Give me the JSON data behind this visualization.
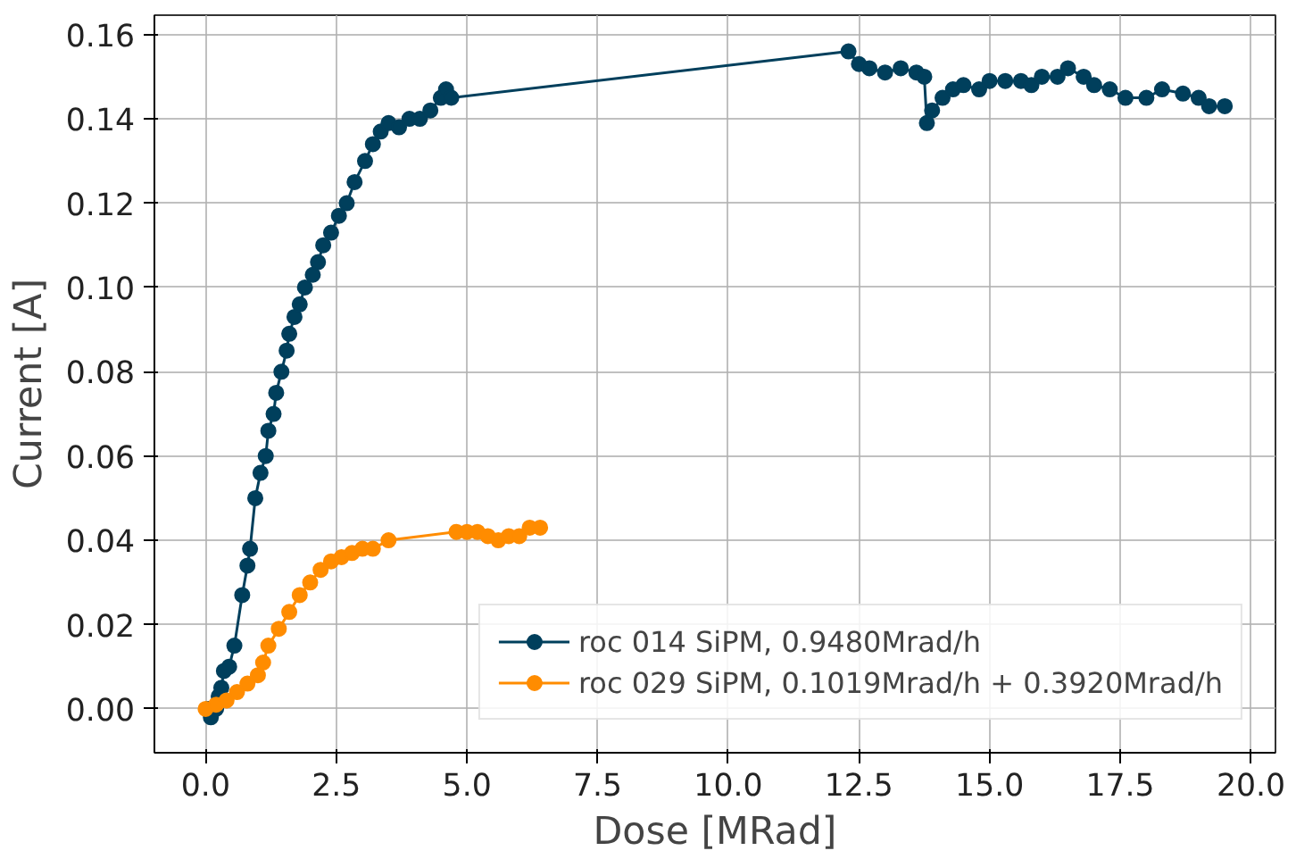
{
  "chart_data": {
    "type": "line",
    "xlabel": "Dose [MRad]",
    "ylabel": "Current [A]",
    "xlim": [
      -0.98,
      20.47
    ],
    "ylim": [
      -0.0104,
      0.1646
    ],
    "xticks": [
      {
        "value": 0,
        "label": "0.0"
      },
      2.5,
      {
        "value": 5,
        "label": "5.0"
      },
      7.5,
      {
        "value": 10,
        "label": "10.0"
      },
      12.5,
      {
        "value": 15,
        "label": "15.0"
      },
      17.5,
      {
        "value": 20,
        "label": "20.0"
      }
    ],
    "yticks": [
      {
        "value": 0,
        "label": "0.00"
      },
      {
        "value": 0.02,
        "label": "0.02"
      },
      {
        "value": 0.04,
        "label": "0.04"
      },
      {
        "value": 0.06,
        "label": "0.06"
      },
      {
        "value": 0.08,
        "label": "0.08"
      },
      {
        "value": 0.1,
        "label": "0.10"
      },
      {
        "value": 0.12,
        "label": "0.12"
      },
      {
        "value": 0.14,
        "label": "0.14"
      },
      {
        "value": 0.16,
        "label": "0.16"
      }
    ],
    "grid": true,
    "legend": "bottom right",
    "marker": "circle",
    "line_style": "solid",
    "series": [
      {
        "name": "roc 014 SiPM, 0.9480Mrad/h",
        "color": "#003f5c",
        "x": [
          0.05,
          0.1,
          0.2,
          0.25,
          0.3,
          0.35,
          0.45,
          0.55,
          0.7,
          0.8,
          0.85,
          0.95,
          1.05,
          1.15,
          1.2,
          1.3,
          1.35,
          1.45,
          1.55,
          1.6,
          1.7,
          1.8,
          1.9,
          2.05,
          2.15,
          2.25,
          2.4,
          2.55,
          2.7,
          2.85,
          3.05,
          3.2,
          3.35,
          3.5,
          3.7,
          3.9,
          4.1,
          4.3,
          4.5,
          4.6,
          4.7,
          12.3,
          12.5,
          12.7,
          13.0,
          13.3,
          13.6,
          13.75,
          13.8,
          13.9,
          14.1,
          14.3,
          14.5,
          14.8,
          15.0,
          15.3,
          15.6,
          15.8,
          16.0,
          16.3,
          16.5,
          16.8,
          17.0,
          17.3,
          17.6,
          18.0,
          18.3,
          18.7,
          19.0,
          19.2,
          19.5
        ],
        "values": [
          0.0,
          -0.002,
          0.0,
          0.003,
          0.005,
          0.009,
          0.01,
          0.015,
          0.027,
          0.034,
          0.038,
          0.05,
          0.056,
          0.06,
          0.066,
          0.07,
          0.075,
          0.08,
          0.085,
          0.089,
          0.093,
          0.096,
          0.1,
          0.103,
          0.106,
          0.11,
          0.113,
          0.117,
          0.12,
          0.125,
          0.13,
          0.134,
          0.137,
          0.139,
          0.138,
          0.14,
          0.14,
          0.142,
          0.145,
          0.147,
          0.145,
          0.156,
          0.153,
          0.152,
          0.151,
          0.152,
          0.151,
          0.15,
          0.139,
          0.142,
          0.145,
          0.147,
          0.148,
          0.147,
          0.149,
          0.149,
          0.149,
          0.148,
          0.15,
          0.15,
          0.152,
          0.15,
          0.148,
          0.147,
          0.145,
          0.145,
          0.147,
          0.146,
          0.145,
          0.143,
          0.143
        ]
      },
      {
        "name": "roc 029 SiPM, 0.1019Mrad/h + 0.3920Mrad/h",
        "color": "#ff8c00",
        "x": [
          0.0,
          0.2,
          0.4,
          0.6,
          0.8,
          1.0,
          1.1,
          1.2,
          1.4,
          1.6,
          1.8,
          2.0,
          2.2,
          2.4,
          2.6,
          2.8,
          3.0,
          3.2,
          3.5,
          4.8,
          5.0,
          5.2,
          5.4,
          5.6,
          5.8,
          6.0,
          6.2,
          6.4
        ],
        "values": [
          0.0,
          0.001,
          0.002,
          0.004,
          0.006,
          0.008,
          0.011,
          0.015,
          0.019,
          0.023,
          0.027,
          0.03,
          0.033,
          0.035,
          0.036,
          0.037,
          0.038,
          0.038,
          0.04,
          0.042,
          0.042,
          0.042,
          0.041,
          0.04,
          0.041,
          0.041,
          0.043,
          0.043
        ]
      }
    ]
  }
}
